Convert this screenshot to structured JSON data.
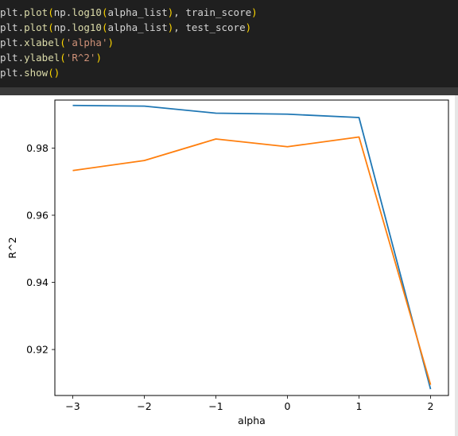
{
  "code": {
    "lines": [
      [
        {
          "t": "plt.",
          "c": "plain"
        },
        {
          "t": "plot",
          "c": "fn"
        },
        {
          "t": "(",
          "c": "paren"
        },
        {
          "t": "np.",
          "c": "plain"
        },
        {
          "t": "log10",
          "c": "fn"
        },
        {
          "t": "(",
          "c": "paren"
        },
        {
          "t": "alpha_list",
          "c": "plain"
        },
        {
          "t": ")",
          "c": "paren"
        },
        {
          "t": ", train_score",
          "c": "plain"
        },
        {
          "t": ")",
          "c": "paren"
        }
      ],
      [
        {
          "t": "plt.",
          "c": "plain"
        },
        {
          "t": "plot",
          "c": "fn"
        },
        {
          "t": "(",
          "c": "paren"
        },
        {
          "t": "np.",
          "c": "plain"
        },
        {
          "t": "log10",
          "c": "fn"
        },
        {
          "t": "(",
          "c": "paren"
        },
        {
          "t": "alpha_list",
          "c": "plain"
        },
        {
          "t": ")",
          "c": "paren"
        },
        {
          "t": ", test_score",
          "c": "plain"
        },
        {
          "t": ")",
          "c": "paren"
        }
      ],
      [
        {
          "t": "plt.",
          "c": "plain"
        },
        {
          "t": "xlabel",
          "c": "fn"
        },
        {
          "t": "(",
          "c": "paren"
        },
        {
          "t": "'alpha'",
          "c": "str"
        },
        {
          "t": ")",
          "c": "paren"
        }
      ],
      [
        {
          "t": "plt.",
          "c": "plain"
        },
        {
          "t": "ylabel",
          "c": "fn"
        },
        {
          "t": "(",
          "c": "paren"
        },
        {
          "t": "'R^2'",
          "c": "str"
        },
        {
          "t": ")",
          "c": "paren"
        }
      ],
      [
        {
          "t": "plt.",
          "c": "plain"
        },
        {
          "t": "show",
          "c": "fn"
        },
        {
          "t": "()",
          "c": "paren"
        }
      ]
    ]
  },
  "chart_data": {
    "type": "line",
    "title": "",
    "xlabel": "alpha",
    "ylabel": "R^2",
    "x": [
      -3,
      -2,
      -1,
      0,
      1,
      2
    ],
    "xticks": [
      -3,
      -2,
      -1,
      0,
      1,
      2
    ],
    "xtick_labels": [
      "−3",
      "−2",
      "−1",
      "0",
      "1",
      "2"
    ],
    "yticks": [
      0.92,
      0.94,
      0.96,
      0.98
    ],
    "ytick_labels": [
      "0.92",
      "0.94",
      "0.96",
      "0.98"
    ],
    "xlim": [
      -3.25,
      2.25
    ],
    "ylim": [
      0.9063,
      0.9943
    ],
    "grid": false,
    "legend": "none",
    "series": [
      {
        "values": [
          0.9927,
          0.9925,
          0.9904,
          0.9901,
          0.9891,
          0.9082
        ],
        "color": "#1f77b4"
      },
      {
        "values": [
          0.9733,
          0.9763,
          0.9827,
          0.9804,
          0.9833,
          0.9095
        ],
        "color": "#ff7f0e"
      }
    ]
  }
}
